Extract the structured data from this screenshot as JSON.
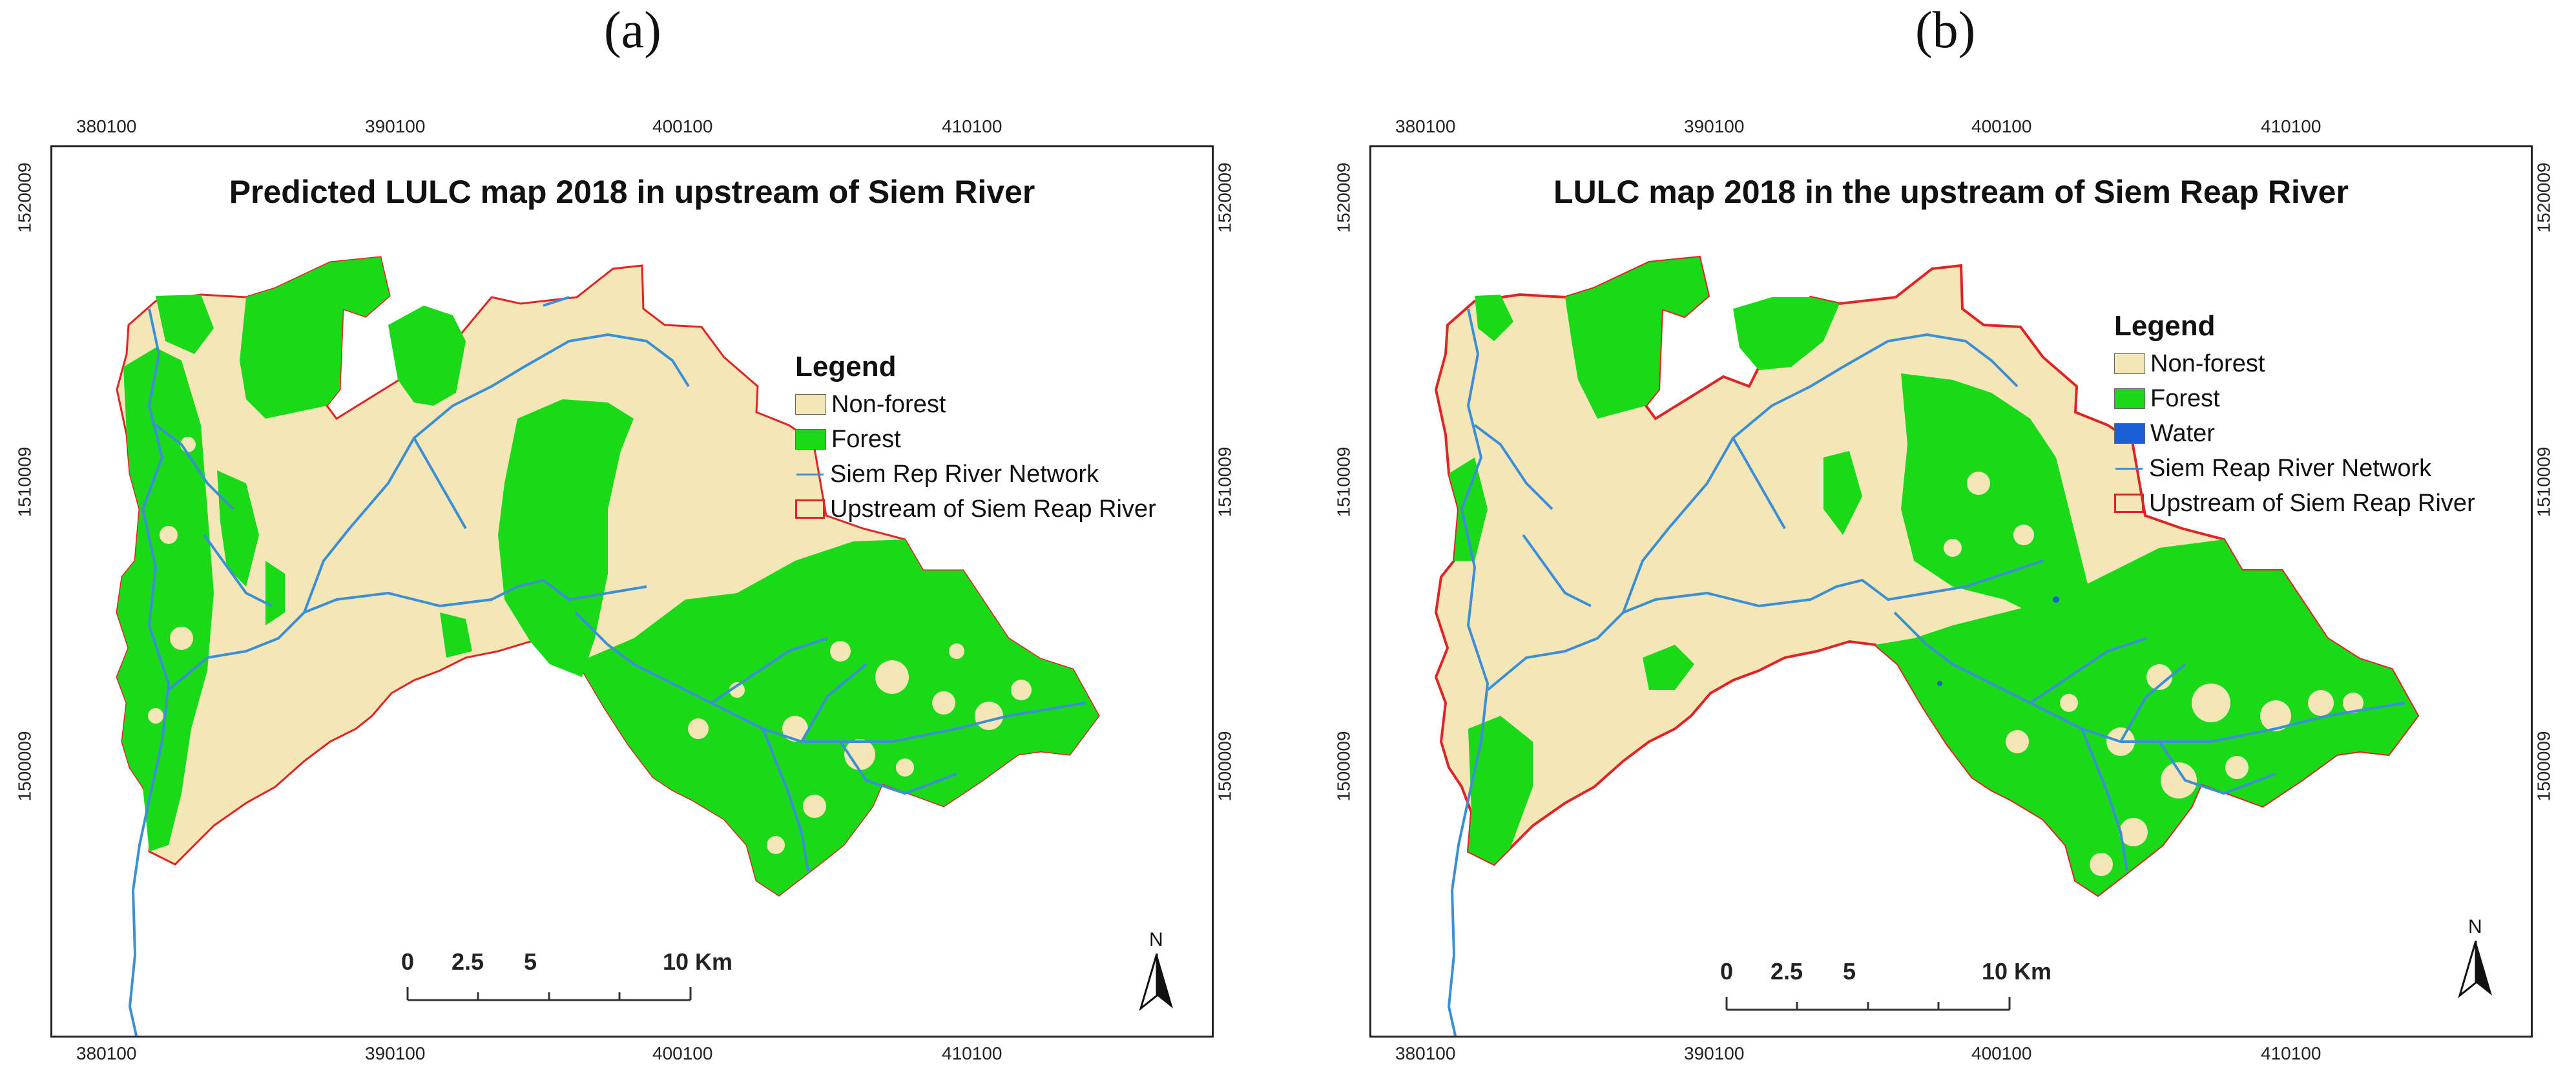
{
  "panels": [
    {
      "label": "(a)",
      "title": "Predicted LULC map 2018 in upstream of Siem River",
      "x_ticks": [
        "380100",
        "390100",
        "400100",
        "410100"
      ],
      "y_ticks": [
        "1520009",
        "1510009",
        "1500009"
      ],
      "legend": {
        "title": "Legend",
        "items": [
          {
            "label": "Non-forest",
            "kind": "fill",
            "color": "#f5e6b8"
          },
          {
            "label": "Forest",
            "kind": "fill",
            "color": "#19d919"
          },
          {
            "label": "Siem Rep River Network",
            "kind": "line",
            "color": "#3a8fd6"
          },
          {
            "label": "Upstream of Siem Reap River",
            "kind": "box",
            "color": "#e02424"
          }
        ]
      },
      "scale": {
        "labels": [
          "0",
          "2.5",
          "5",
          "10 Km"
        ]
      },
      "north": "N"
    },
    {
      "label": "(b)",
      "title": "LULC map 2018 in the upstream of Siem Reap River",
      "x_ticks": [
        "380100",
        "390100",
        "400100",
        "410100"
      ],
      "y_ticks": [
        "1520009",
        "1510009",
        "1500009"
      ],
      "legend": {
        "title": "Legend",
        "items": [
          {
            "label": "Non-forest",
            "kind": "fill",
            "color": "#f5e6b8"
          },
          {
            "label": "Forest",
            "kind": "fill",
            "color": "#19d919"
          },
          {
            "label": "Water",
            "kind": "fill",
            "color": "#1b5fd6"
          },
          {
            "label": "Siem Reap River Network",
            "kind": "line",
            "color": "#3a8fd6"
          },
          {
            "label": "Upstream of Siem Reap River",
            "kind": "box",
            "color": "#e02424"
          }
        ]
      },
      "scale": {
        "labels": [
          "0",
          "2.5",
          "5",
          "10 Km"
        ]
      },
      "north": "N"
    }
  ],
  "colors": {
    "non_forest": "#f5e6b8",
    "forest": "#19d919",
    "water": "#1b5fd6",
    "river": "#3a8fd6",
    "boundary": "#e02424"
  }
}
